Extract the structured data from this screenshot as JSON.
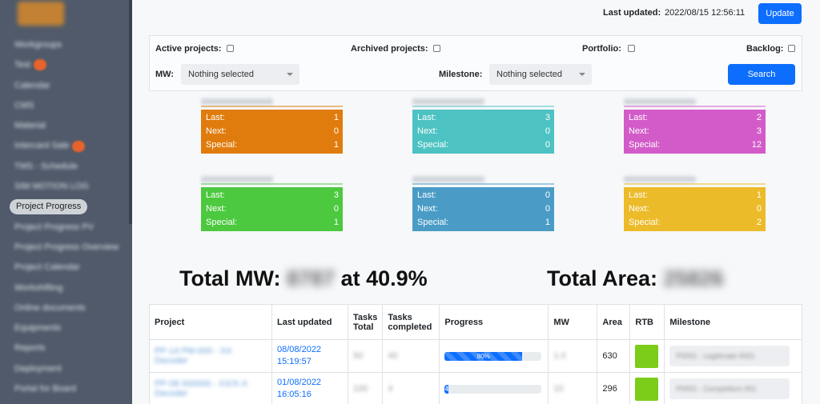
{
  "sidebar": {
    "active_item": "Project Progress",
    "items": [
      {
        "label": "Workgroups",
        "badge": false
      },
      {
        "label": "Test",
        "badge": true
      },
      {
        "label": "Calendar",
        "badge": false
      },
      {
        "label": "CMS",
        "badge": false
      },
      {
        "label": "Material",
        "badge": false
      },
      {
        "label": "Intercard Sale",
        "badge": true
      },
      {
        "label": "TMS - Schedule",
        "badge": false
      },
      {
        "label": "SIM MOTION LOG",
        "badge": false
      },
      {
        "label": "Project Progress",
        "badge": false,
        "active": true
      },
      {
        "label": "Project Progress PV",
        "badge": false
      },
      {
        "label": "Project Progress Overview",
        "badge": false
      },
      {
        "label": "Project Calendar",
        "badge": false
      },
      {
        "label": "Workshifting",
        "badge": false
      },
      {
        "label": "Online documents",
        "badge": false
      },
      {
        "label": "Equipments",
        "badge": false
      },
      {
        "label": "Reports",
        "badge": false
      },
      {
        "label": "Deployment",
        "badge": false
      },
      {
        "label": "Portal for Board",
        "badge": false
      }
    ]
  },
  "topbar": {
    "last_updated_label": "Last updated:",
    "last_updated_value": "2022/08/15 12:56:11",
    "update_button": "Update"
  },
  "filters": {
    "active_projects": "Active projects:",
    "archived_projects": "Archived projects:",
    "portfolio": "Portfolio:",
    "backlog": "Backlog:",
    "mw_label": "MW:",
    "mw_value": "Nothing selected",
    "milestone_label": "Milestone:",
    "milestone_value": "Nothing selected",
    "search_button": "Search"
  },
  "cards": [
    {
      "color": "#e07c0d",
      "last": "1",
      "next": "0",
      "special": "1"
    },
    {
      "color": "#4dc2c2",
      "last": "3",
      "next": "0",
      "special": "0"
    },
    {
      "color": "#d35bc9",
      "last": "2",
      "next": "3",
      "special": "12"
    },
    {
      "color": "#4cc93f",
      "last": "3",
      "next": "0",
      "special": "1"
    },
    {
      "color": "#4a9cc6",
      "last": "0",
      "next": "0",
      "special": "1"
    },
    {
      "color": "#ecbb2a",
      "last": "1",
      "next": "0",
      "special": "2"
    }
  ],
  "card_labels": {
    "last": "Last:",
    "next": "Next:",
    "special": "Special:"
  },
  "totals": {
    "mw_label": "Total MW:",
    "mw_value": "8787",
    "mw_suffix": "at 40.9%",
    "area_label": "Total Area:",
    "area_value": "25826"
  },
  "table": {
    "headers": {
      "project": "Project",
      "last_updated": "Last updated",
      "tasks_total_1": "Tasks",
      "tasks_total_2": "Total",
      "tasks_completed_1": "Tasks",
      "tasks_completed_2": "completed",
      "progress": "Progress",
      "mw": "MW",
      "area": "Area",
      "rtb": "RTB",
      "milestone": "Milestone"
    },
    "rows": [
      {
        "project": "PP-14 PM-000 - XX Decoder",
        "updated_date": "08/08/2022",
        "updated_time": "15:19:57",
        "tasks_total": "50",
        "tasks_completed": "40",
        "progress": 80,
        "progress_label": "80%",
        "mw": "1.0",
        "area": "630",
        "rtb_color": "#7ccc1a",
        "milestone": "P0001 - Legitimate 0001"
      },
      {
        "project": "PP-08 000000 - XX/X-X Decoder",
        "updated_date": "01/08/2022",
        "updated_time": "16:05:16",
        "tasks_total": "100",
        "tasks_completed": "4",
        "progress": 4,
        "progress_label": "4",
        "mw": "10",
        "area": "296",
        "rtb_color": "#7ccc1a",
        "milestone": "P0001 - Competitors 001"
      }
    ]
  }
}
